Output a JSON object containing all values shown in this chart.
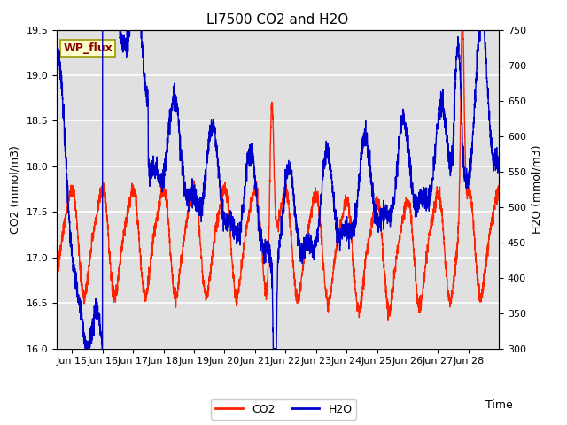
{
  "title": "LI7500 CO2 and H2O",
  "xlabel": "Time",
  "ylabel_left": "CO2 (mmol/m3)",
  "ylabel_right": "H2O (mmol/m3)",
  "co2_color": "#FF2200",
  "h2o_color": "#0000CC",
  "co2_ylim": [
    16.0,
    19.5
  ],
  "h2o_ylim": [
    300,
    750
  ],
  "co2_yticks": [
    16.0,
    16.5,
    17.0,
    17.5,
    18.0,
    18.5,
    19.0,
    19.5
  ],
  "h2o_yticks": [
    300,
    350,
    400,
    450,
    500,
    550,
    600,
    650,
    700,
    750
  ],
  "annotation_text": "WP_flux",
  "annotation_color": "#8B0000",
  "annotation_bg": "#FFFFCC",
  "annotation_edge": "#999900",
  "background_color": "#FFFFFF",
  "plot_bg_color": "#E0E0E0",
  "grid_color": "#FFFFFF",
  "title_fontsize": 11,
  "axis_fontsize": 9,
  "tick_fontsize": 8,
  "legend_fontsize": 9,
  "linewidth": 1.0,
  "figwidth": 6.4,
  "figheight": 4.8,
  "dpi": 100
}
